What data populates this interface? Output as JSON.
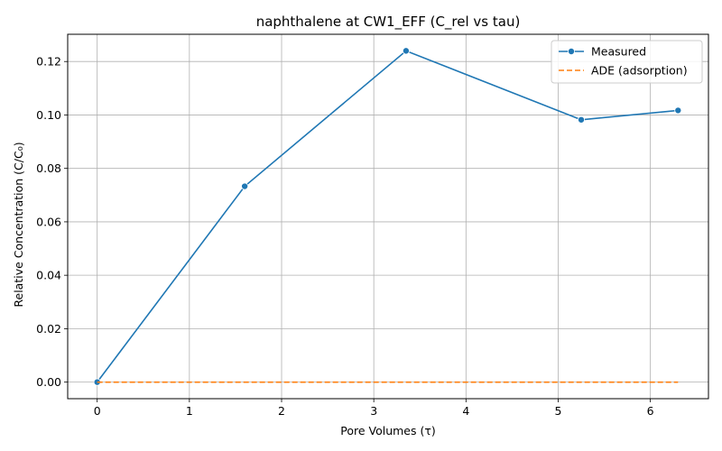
{
  "chart_data": {
    "type": "line",
    "title": "naphthalene at CW1_EFF (C_rel vs tau)",
    "xlabel": "Pore Volumes (τ)",
    "ylabel": "Relative Concentration (C/C₀)",
    "xlim": [
      -0.32,
      6.63
    ],
    "ylim": [
      -0.0062,
      0.1302
    ],
    "xticks": [
      0,
      1,
      2,
      3,
      4,
      5,
      6
    ],
    "yticks": [
      0.0,
      0.02,
      0.04,
      0.06,
      0.08,
      0.1,
      0.12
    ],
    "xtick_labels": [
      "0",
      "1",
      "2",
      "3",
      "4",
      "5",
      "6"
    ],
    "ytick_labels": [
      "0.00",
      "0.02",
      "0.04",
      "0.06",
      "0.08",
      "0.10",
      "0.12"
    ],
    "grid": true,
    "legend_position": "top-right",
    "series": [
      {
        "name": "Measured",
        "color": "#1f77b4",
        "style": "solid",
        "marker": "circle",
        "x": [
          0.0,
          1.6,
          3.35,
          5.25,
          6.3
        ],
        "y": [
          0.0,
          0.0733,
          0.124,
          0.0982,
          0.1017
        ]
      },
      {
        "name": "ADE (adsorption)",
        "color": "#ff7f0e",
        "style": "dashed",
        "marker": "none",
        "x": [
          0.0,
          6.3
        ],
        "y": [
          0.0,
          0.0
        ]
      }
    ]
  }
}
